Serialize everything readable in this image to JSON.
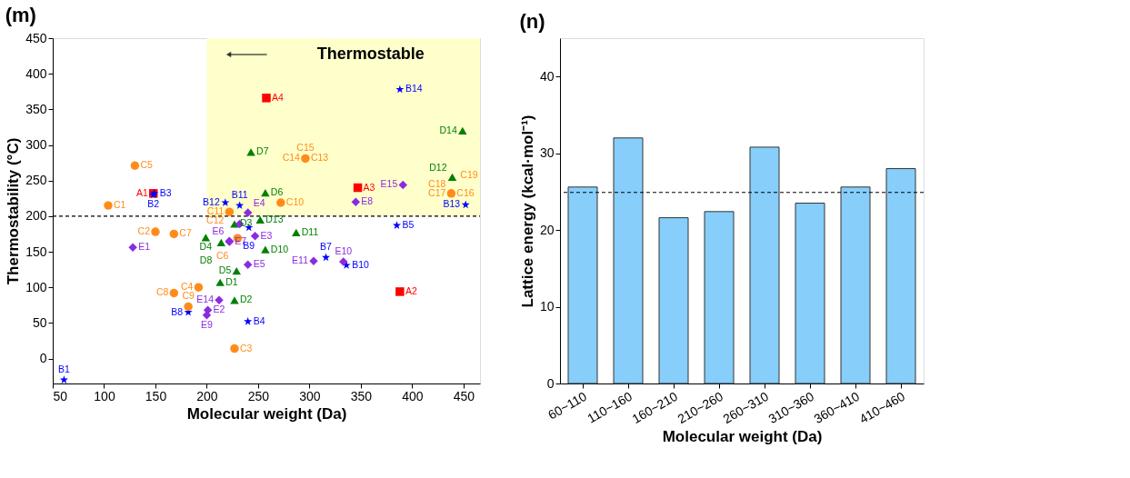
{
  "chart_data": [
    {
      "type": "scatter",
      "title": "(m)",
      "xlabel": "Molecular weight (Da)",
      "ylabel": "Thermostability (°C)",
      "xlim": [
        50,
        466
      ],
      "ylim": [
        -35,
        450
      ],
      "xticks": [
        50,
        100,
        150,
        200,
        250,
        300,
        350,
        400,
        450
      ],
      "yticks": [
        0,
        50,
        100,
        150,
        200,
        250,
        300,
        350,
        400,
        450
      ],
      "grid": false,
      "series": [
        {
          "color": "#ff0000",
          "marker": "square",
          "x": [
            148,
            388
          ],
          "values": [
            232,
            94
          ]
        },
        {
          "color": "#ff0000",
          "marker": "square",
          "x": [
            347,
            258
          ],
          "values": [
            240,
            366
          ]
        },
        {
          "color": "#0000ff",
          "marker": "star",
          "x": [
            61,
            148,
            149,
            240,
            385,
            316,
            182
          ],
          "values": [
            -30,
            230,
            232,
            52,
            187,
            142,
            65
          ]
        },
        {
          "color": "#0000ff",
          "marker": "star",
          "x": [
            241,
            336,
            232,
            218,
            452,
            388
          ],
          "values": [
            184,
            131,
            215,
            219,
            216,
            378
          ]
        },
        {
          "color": "#ff8c1a",
          "marker": "circle",
          "x": [
            104,
            150,
            227
          ],
          "values": [
            215,
            178,
            14
          ]
        },
        {
          "color": "#ff8c1a",
          "marker": "circle",
          "x": [
            192,
            130,
            230,
            168,
            168,
            182,
            272
          ],
          "values": [
            100,
            271,
            169,
            175,
            92,
            73,
            219
          ]
        },
        {
          "color": "#ff8c1a",
          "marker": "circle",
          "x": [
            222,
            296,
            438
          ],
          "values": [
            206,
            281,
            232
          ]
        },
        {
          "color": "#008000",
          "marker": "triangle",
          "x": [
            213,
            227,
            227,
            199,
            229,
            257,
            243,
            214,
            257,
            287,
            439,
            252,
            449
          ],
          "values": [
            107,
            82,
            189,
            170,
            123,
            233,
            290,
            163,
            153,
            177,
            255,
            195,
            320
          ]
        },
        {
          "color": "#8a2be2",
          "marker": "diamond",
          "x": [
            128,
            201,
            247,
            240,
            240,
            222,
            222,
            345,
            200,
            333,
            304,
            212,
            391,
            232
          ],
          "values": [
            156,
            68,
            172,
            205,
            132,
            165,
            164,
            220,
            61,
            136,
            137,
            82,
            244,
            189
          ]
        }
      ],
      "ref_lines": [
        {
          "axis": "y",
          "value": 200,
          "line_style": "dashed",
          "color": "#000000"
        }
      ],
      "bands": [
        {
          "axis": "x",
          "from": 200,
          "to": 466,
          "label": "Thermostable",
          "color": "#ffffcc"
        }
      ],
      "annotations": [
        {
          "text": "A1",
          "x": 148,
          "y": 232
        },
        {
          "text": "A2",
          "x": 388,
          "y": 94
        },
        {
          "text": "A3",
          "x": 347,
          "y": 240
        },
        {
          "text": "A4",
          "x": 258,
          "y": 366
        },
        {
          "text": "B1",
          "x": 61,
          "y": -30
        },
        {
          "text": "B2",
          "x": 148,
          "y": 230
        },
        {
          "text": "B3",
          "x": 149,
          "y": 232
        },
        {
          "text": "B4",
          "x": 240,
          "y": 52
        },
        {
          "text": "B5",
          "x": 385,
          "y": 187
        },
        {
          "text": "B7",
          "x": 316,
          "y": 142
        },
        {
          "text": "B8",
          "x": 182,
          "y": 65
        },
        {
          "text": "B9",
          "x": 241,
          "y": 184
        },
        {
          "text": "B10",
          "x": 336,
          "y": 131
        },
        {
          "text": "B11",
          "x": 232,
          "y": 215
        },
        {
          "text": "B12",
          "x": 218,
          "y": 219
        },
        {
          "text": "B13",
          "x": 452,
          "y": 216
        },
        {
          "text": "B14",
          "x": 388,
          "y": 378
        },
        {
          "text": "C1",
          "x": 104,
          "y": 215
        },
        {
          "text": "C2",
          "x": 150,
          "y": 178
        },
        {
          "text": "C3",
          "x": 227,
          "y": 14
        },
        {
          "text": "C4",
          "x": 192,
          "y": 100
        },
        {
          "text": "C5",
          "x": 130,
          "y": 271
        },
        {
          "text": "C6",
          "x": 230,
          "y": 169
        },
        {
          "text": "C7",
          "x": 168,
          "y": 175
        },
        {
          "text": "C8",
          "x": 168,
          "y": 92
        },
        {
          "text": "C9",
          "x": 182,
          "y": 73
        },
        {
          "text": "C10",
          "x": 272,
          "y": 219
        },
        {
          "text": "C11",
          "x": 222,
          "y": 206
        },
        {
          "text": "C12",
          "x": 222,
          "y": 206
        },
        {
          "text": "C13",
          "x": 296,
          "y": 281
        },
        {
          "text": "C14",
          "x": 296,
          "y": 281
        },
        {
          "text": "C15",
          "x": 296,
          "y": 281
        },
        {
          "text": "C16",
          "x": 438,
          "y": 232
        },
        {
          "text": "C17",
          "x": 438,
          "y": 232
        },
        {
          "text": "C18",
          "x": 438,
          "y": 232
        },
        {
          "text": "C19",
          "x": 438,
          "y": 232
        },
        {
          "text": "D1",
          "x": 213,
          "y": 107
        },
        {
          "text": "D2",
          "x": 227,
          "y": 82
        },
        {
          "text": "D3",
          "x": 227,
          "y": 189
        },
        {
          "text": "D4",
          "x": 199,
          "y": 170
        },
        {
          "text": "D5",
          "x": 229,
          "y": 123
        },
        {
          "text": "D6",
          "x": 257,
          "y": 233
        },
        {
          "text": "D7",
          "x": 243,
          "y": 290
        },
        {
          "text": "D8",
          "x": 214,
          "y": 163
        },
        {
          "text": "D10",
          "x": 257,
          "y": 153
        },
        {
          "text": "D11",
          "x": 287,
          "y": 177
        },
        {
          "text": "D12",
          "x": 439,
          "y": 255
        },
        {
          "text": "D13",
          "x": 252,
          "y": 195
        },
        {
          "text": "D14",
          "x": 449,
          "y": 320
        },
        {
          "text": "E1",
          "x": 128,
          "y": 156
        },
        {
          "text": "E2",
          "x": 201,
          "y": 68
        },
        {
          "text": "E3",
          "x": 247,
          "y": 172
        },
        {
          "text": "E4",
          "x": 240,
          "y": 205
        },
        {
          "text": "E5",
          "x": 240,
          "y": 132
        },
        {
          "text": "E6",
          "x": 222,
          "y": 165
        },
        {
          "text": "E7",
          "x": 222,
          "y": 164
        },
        {
          "text": "E8",
          "x": 345,
          "y": 220
        },
        {
          "text": "E9",
          "x": 200,
          "y": 61
        },
        {
          "text": "E10",
          "x": 333,
          "y": 136
        },
        {
          "text": "E11",
          "x": 304,
          "y": 137
        },
        {
          "text": "E14",
          "x": 212,
          "y": 82
        },
        {
          "text": "E15",
          "x": 391,
          "y": 244
        }
      ]
    },
    {
      "type": "bar",
      "title": "(n)",
      "xlabel": "Molecular weight (Da)",
      "ylabel": "Lattice energy (kcal·mol⁻¹)",
      "categories": [
        "60~110",
        "110~160",
        "160~210",
        "210~260",
        "260~310",
        "310~360",
        "360~410",
        "410~460"
      ],
      "values": [
        25.6,
        32.0,
        21.6,
        22.4,
        30.8,
        23.5,
        25.6,
        28.0
      ],
      "color": "#87cefa",
      "ylim": [
        0,
        45
      ],
      "yticks": [
        0,
        10,
        20,
        30,
        40
      ],
      "grid": false,
      "ref_lines": [
        {
          "axis": "y",
          "value": 24.9,
          "line_style": "dashed",
          "color": "#000000"
        }
      ]
    }
  ]
}
